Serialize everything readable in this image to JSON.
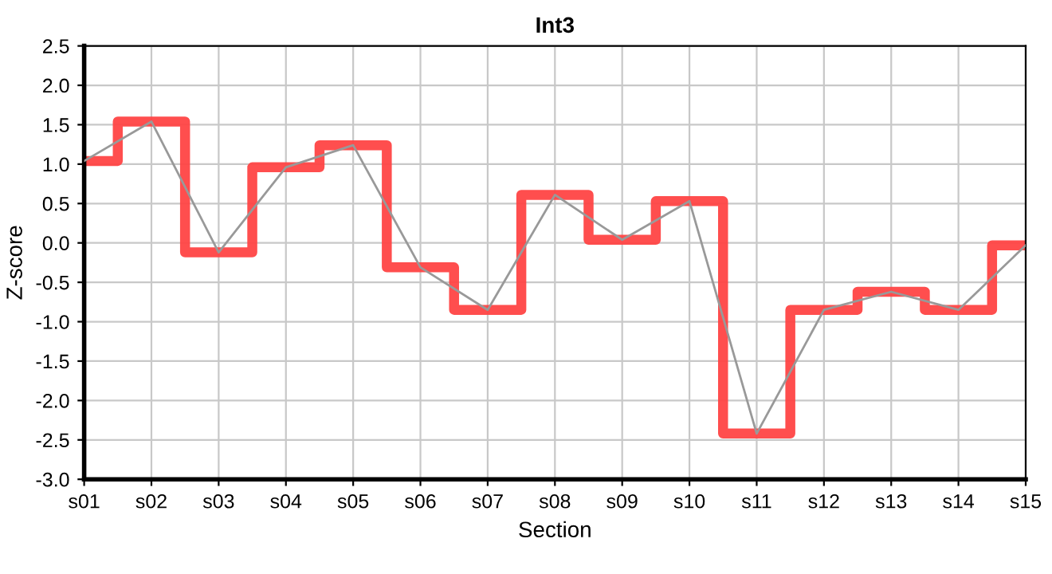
{
  "chart_data": {
    "type": "line",
    "title": "Int3",
    "xlabel": "Section",
    "ylabel": "Z-score",
    "categories": [
      "s01",
      "s02",
      "s03",
      "s04",
      "s05",
      "s06",
      "s07",
      "s08",
      "s09",
      "s10",
      "s11",
      "s12",
      "s13",
      "s14",
      "s15"
    ],
    "series": [
      {
        "type": "step",
        "color": "#ff4444",
        "values": [
          1.04,
          1.54,
          -0.12,
          0.96,
          1.24,
          -0.31,
          -0.85,
          0.61,
          0.04,
          0.53,
          -2.42,
          -0.85,
          -0.62,
          -0.85,
          -0.03
        ]
      },
      {
        "color": "#999999",
        "values": [
          1.04,
          1.54,
          -0.12,
          0.96,
          1.24,
          -0.31,
          -0.85,
          0.61,
          0.04,
          0.53,
          -2.42,
          -0.85,
          -0.62,
          -0.85,
          -0.03
        ]
      }
    ],
    "ylim": [
      -3.0,
      2.5
    ],
    "yticks": [
      {
        "value": -3.0,
        "label": "-3.0"
      },
      -2.5,
      {
        "value": -2.0,
        "label": "-2.0"
      },
      -1.5,
      {
        "value": -1.0,
        "label": "-1.0"
      },
      -0.5,
      {
        "value": 0.0,
        "label": "0.0"
      },
      0.5,
      {
        "value": 1.0,
        "label": "1.0"
      },
      1.5,
      {
        "value": 2.0,
        "label": "2.0"
      },
      2.5
    ],
    "grid": true,
    "marker": "none",
    "line_style": "solid"
  }
}
